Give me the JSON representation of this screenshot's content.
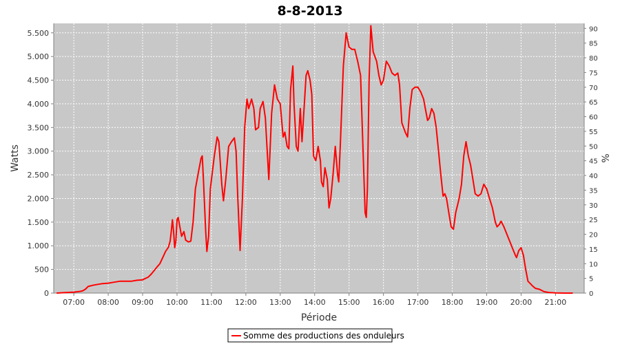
{
  "chart_data": {
    "type": "line",
    "title": "8-8-2013",
    "xlabel": "Période",
    "ylabel": "Watts",
    "y2label": "%",
    "x_tick_labels": [
      "07:00",
      "08:00",
      "09:00",
      "10:00",
      "11:00",
      "12:00",
      "13:00",
      "14:00",
      "15:00",
      "16:00",
      "17:00",
      "18:00",
      "19:00",
      "20:00",
      "21:00"
    ],
    "y_tick_labels": [
      "0",
      "500",
      "1.000",
      "1.500",
      "2.000",
      "2.500",
      "3.000",
      "3.500",
      "4.000",
      "4.500",
      "5.000",
      "5.500"
    ],
    "y_ticks": [
      0,
      500,
      1000,
      1500,
      2000,
      2500,
      3000,
      3500,
      4000,
      4500,
      5000,
      5500
    ],
    "y2_ticks": [
      0,
      5,
      10,
      15,
      20,
      25,
      30,
      35,
      40,
      45,
      50,
      55,
      60,
      65,
      70,
      75,
      80,
      85,
      90
    ],
    "xlim": [
      "06:25",
      "21:50"
    ],
    "ylim": [
      0,
      5700
    ],
    "y2lim": [
      0,
      91.7
    ],
    "grid": true,
    "legend_position": "bottom",
    "colors": {
      "series": "#ff0000",
      "plot_background": "#c8c8c8",
      "grid": "#ffffff"
    },
    "series": [
      {
        "name": "Somme des productions des onduleurs",
        "points": [
          [
            "06:30",
            0
          ],
          [
            "06:45",
            10
          ],
          [
            "07:00",
            20
          ],
          [
            "07:10",
            35
          ],
          [
            "07:15",
            45
          ],
          [
            "07:20",
            80
          ],
          [
            "07:25",
            140
          ],
          [
            "07:35",
            170
          ],
          [
            "07:50",
            200
          ],
          [
            "08:00",
            210
          ],
          [
            "08:10",
            230
          ],
          [
            "08:20",
            250
          ],
          [
            "08:30",
            250
          ],
          [
            "08:40",
            250
          ],
          [
            "08:50",
            270
          ],
          [
            "09:00",
            280
          ],
          [
            "09:10",
            340
          ],
          [
            "09:15",
            400
          ],
          [
            "09:25",
            550
          ],
          [
            "09:30",
            620
          ],
          [
            "09:35",
            750
          ],
          [
            "09:40",
            880
          ],
          [
            "09:45",
            970
          ],
          [
            "09:48",
            1100
          ],
          [
            "09:50",
            1300
          ],
          [
            "09:52",
            1550
          ],
          [
            "09:54",
            1300
          ],
          [
            "09:56",
            960
          ],
          [
            "09:58",
            1100
          ],
          [
            "10:00",
            1550
          ],
          [
            "10:02",
            1600
          ],
          [
            "10:05",
            1400
          ],
          [
            "10:08",
            1200
          ],
          [
            "10:12",
            1300
          ],
          [
            "10:15",
            1120
          ],
          [
            "10:20",
            1080
          ],
          [
            "10:24",
            1100
          ],
          [
            "10:28",
            1500
          ],
          [
            "10:32",
            2200
          ],
          [
            "10:38",
            2600
          ],
          [
            "10:42",
            2850
          ],
          [
            "10:44",
            2900
          ],
          [
            "10:46",
            2400
          ],
          [
            "10:50",
            1300
          ],
          [
            "10:52",
            880
          ],
          [
            "10:55",
            1200
          ],
          [
            "10:58",
            2200
          ],
          [
            "11:05",
            2900
          ],
          [
            "11:10",
            3300
          ],
          [
            "11:13",
            3200
          ],
          [
            "11:18",
            2300
          ],
          [
            "11:21",
            1950
          ],
          [
            "11:25",
            2400
          ],
          [
            "11:30",
            3100
          ],
          [
            "11:35",
            3200
          ],
          [
            "11:40",
            3280
          ],
          [
            "11:43",
            3000
          ],
          [
            "11:46",
            2000
          ],
          [
            "11:50",
            900
          ],
          [
            "11:54",
            2000
          ],
          [
            "11:58",
            3500
          ],
          [
            "12:02",
            4100
          ],
          [
            "12:05",
            3900
          ],
          [
            "12:10",
            4100
          ],
          [
            "12:14",
            3900
          ],
          [
            "12:17",
            3450
          ],
          [
            "12:22",
            3500
          ],
          [
            "12:25",
            3900
          ],
          [
            "12:30",
            4050
          ],
          [
            "12:34",
            3700
          ],
          [
            "12:40",
            2400
          ],
          [
            "12:45",
            3800
          ],
          [
            "12:50",
            4400
          ],
          [
            "12:55",
            4100
          ],
          [
            "13:00",
            4000
          ],
          [
            "13:05",
            3300
          ],
          [
            "13:08",
            3400
          ],
          [
            "13:12",
            3100
          ],
          [
            "13:15",
            3050
          ],
          [
            "13:18",
            4300
          ],
          [
            "13:22",
            4800
          ],
          [
            "13:24",
            4000
          ],
          [
            "13:28",
            3100
          ],
          [
            "13:31",
            3000
          ],
          [
            "13:35",
            3900
          ],
          [
            "13:38",
            3200
          ],
          [
            "13:42",
            4000
          ],
          [
            "13:45",
            4600
          ],
          [
            "13:48",
            4700
          ],
          [
            "13:52",
            4500
          ],
          [
            "13:55",
            4200
          ],
          [
            "13:58",
            2900
          ],
          [
            "14:02",
            2800
          ],
          [
            "14:06",
            3100
          ],
          [
            "14:10",
            2800
          ],
          [
            "14:12",
            2350
          ],
          [
            "14:15",
            2250
          ],
          [
            "14:18",
            2650
          ],
          [
            "14:22",
            2400
          ],
          [
            "14:25",
            1800
          ],
          [
            "14:28",
            2000
          ],
          [
            "14:32",
            2500
          ],
          [
            "14:36",
            3100
          ],
          [
            "14:40",
            2500
          ],
          [
            "14:42",
            2350
          ],
          [
            "14:45",
            3200
          ],
          [
            "14:50",
            4800
          ],
          [
            "14:55",
            5500
          ],
          [
            "15:00",
            5200
          ],
          [
            "15:05",
            5150
          ],
          [
            "15:10",
            5150
          ],
          [
            "15:15",
            4900
          ],
          [
            "15:20",
            4600
          ],
          [
            "15:25",
            2800
          ],
          [
            "15:28",
            1700
          ],
          [
            "15:30",
            1600
          ],
          [
            "15:32",
            2200
          ],
          [
            "15:35",
            4500
          ],
          [
            "15:38",
            5650
          ],
          [
            "15:42",
            5100
          ],
          [
            "15:48",
            4900
          ],
          [
            "15:52",
            4600
          ],
          [
            "15:56",
            4400
          ],
          [
            "16:00",
            4500
          ],
          [
            "16:05",
            4900
          ],
          [
            "16:10",
            4800
          ],
          [
            "16:15",
            4650
          ],
          [
            "16:20",
            4600
          ],
          [
            "16:25",
            4650
          ],
          [
            "16:28",
            4400
          ],
          [
            "16:32",
            3600
          ],
          [
            "16:38",
            3400
          ],
          [
            "16:42",
            3300
          ],
          [
            "16:46",
            3900
          ],
          [
            "16:50",
            4300
          ],
          [
            "16:55",
            4350
          ],
          [
            "17:00",
            4350
          ],
          [
            "17:05",
            4250
          ],
          [
            "17:10",
            4100
          ],
          [
            "17:13",
            3900
          ],
          [
            "17:17",
            3650
          ],
          [
            "17:20",
            3700
          ],
          [
            "17:24",
            3900
          ],
          [
            "17:28",
            3800
          ],
          [
            "17:32",
            3500
          ],
          [
            "17:36",
            3000
          ],
          [
            "17:40",
            2500
          ],
          [
            "17:44",
            2050
          ],
          [
            "17:47",
            2100
          ],
          [
            "17:50",
            2000
          ],
          [
            "17:54",
            1700
          ],
          [
            "17:58",
            1400
          ],
          [
            "18:02",
            1350
          ],
          [
            "18:06",
            1700
          ],
          [
            "18:12",
            2000
          ],
          [
            "18:16",
            2300
          ],
          [
            "18:20",
            2900
          ],
          [
            "18:24",
            3200
          ],
          [
            "18:28",
            2900
          ],
          [
            "18:32",
            2700
          ],
          [
            "18:36",
            2400
          ],
          [
            "18:40",
            2100
          ],
          [
            "18:45",
            2050
          ],
          [
            "18:50",
            2100
          ],
          [
            "18:55",
            2300
          ],
          [
            "19:00",
            2200
          ],
          [
            "19:05",
            2000
          ],
          [
            "19:10",
            1800
          ],
          [
            "19:15",
            1500
          ],
          [
            "19:18",
            1400
          ],
          [
            "19:22",
            1450
          ],
          [
            "19:25",
            1520
          ],
          [
            "19:30",
            1400
          ],
          [
            "19:35",
            1250
          ],
          [
            "19:40",
            1100
          ],
          [
            "19:45",
            950
          ],
          [
            "19:50",
            800
          ],
          [
            "19:52",
            750
          ],
          [
            "19:56",
            900
          ],
          [
            "20:00",
            960
          ],
          [
            "20:04",
            800
          ],
          [
            "20:08",
            500
          ],
          [
            "20:12",
            250
          ],
          [
            "20:16",
            200
          ],
          [
            "20:20",
            150
          ],
          [
            "20:25",
            100
          ],
          [
            "20:32",
            80
          ],
          [
            "20:40",
            30
          ],
          [
            "20:50",
            10
          ],
          [
            "21:00",
            5
          ],
          [
            "21:15",
            0
          ],
          [
            "21:30",
            0
          ]
        ]
      }
    ]
  }
}
